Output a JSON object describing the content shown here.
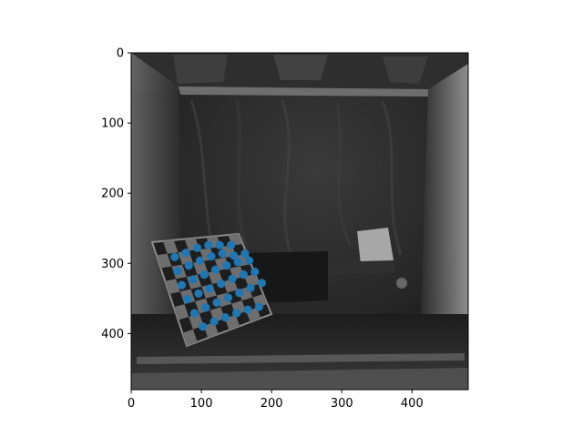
{
  "chart_data": {
    "type": "scatter",
    "title": "",
    "xlabel": "",
    "ylabel": "",
    "xlim": [
      0,
      480
    ],
    "ylim": [
      480,
      0
    ],
    "y_inverted": true,
    "grid": false,
    "background": "grayscale camera image of a tank interior with a checkerboard calibration target",
    "x_ticks": [
      0,
      100,
      200,
      300,
      400
    ],
    "y_ticks": [
      0,
      100,
      200,
      300,
      400
    ],
    "x_tick_labels": [
      "0",
      "100",
      "200",
      "300",
      "400"
    ],
    "y_tick_labels": [
      "0",
      "100",
      "200",
      "300",
      "400"
    ],
    "series": [
      {
        "marker_color": "#1f77b4",
        "points": [
          [
            62,
            291
          ],
          [
            78,
            285
          ],
          [
            94,
            278
          ],
          [
            110,
            274
          ],
          [
            126,
            274
          ],
          [
            142,
            274
          ],
          [
            66,
            311
          ],
          [
            82,
            303
          ],
          [
            98,
            296
          ],
          [
            114,
            290
          ],
          [
            130,
            286
          ],
          [
            146,
            289
          ],
          [
            162,
            286
          ],
          [
            72,
            331
          ],
          [
            88,
            323
          ],
          [
            104,
            316
          ],
          [
            120,
            309
          ],
          [
            136,
            303
          ],
          [
            152,
            298
          ],
          [
            168,
            296
          ],
          [
            80,
            351
          ],
          [
            96,
            343
          ],
          [
            112,
            336
          ],
          [
            128,
            329
          ],
          [
            144,
            322
          ],
          [
            160,
            316
          ],
          [
            176,
            312
          ],
          [
            90,
            371
          ],
          [
            106,
            363
          ],
          [
            122,
            356
          ],
          [
            138,
            349
          ],
          [
            154,
            342
          ],
          [
            170,
            335
          ],
          [
            186,
            328
          ],
          [
            102,
            390
          ],
          [
            118,
            383
          ],
          [
            134,
            377
          ],
          [
            150,
            371
          ],
          [
            166,
            366
          ],
          [
            182,
            362
          ]
        ]
      }
    ]
  }
}
